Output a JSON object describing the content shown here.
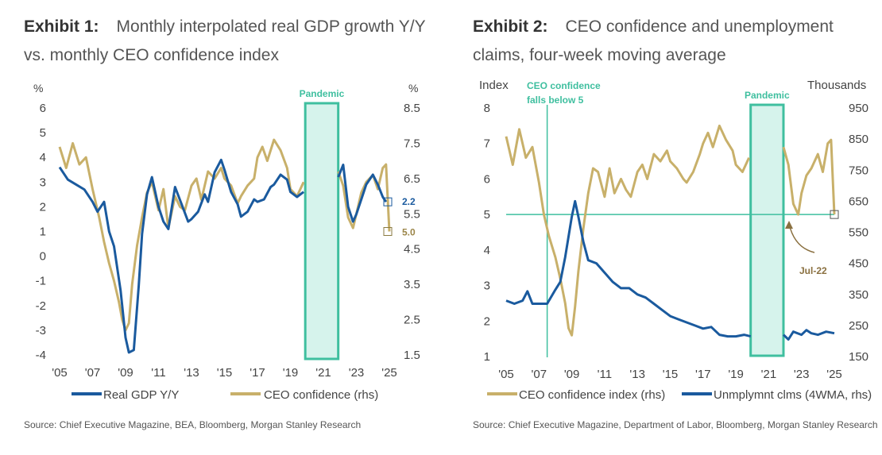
{
  "exhibit1": {
    "label": "Exhibit 1:",
    "title": "Monthly interpolated real GDP growth Y/Y vs. monthly CEO confidence index",
    "source": "Source: Chief Executive Magazine, BEA, Bloomberg, Morgan Stanley Research",
    "pandemic_label": "Pandemic",
    "left_unit": "%",
    "right_unit": "%",
    "left_ticks": [
      "6",
      "5",
      "4",
      "3",
      "2",
      "1",
      "0",
      "-1",
      "-2",
      "-3",
      "-4"
    ],
    "right_ticks": [
      "8.5",
      "7.5",
      "6.5",
      "5.5",
      "4.5",
      "3.5",
      "2.5",
      "1.5"
    ],
    "x_ticks": [
      "'05",
      "'07",
      "'09",
      "'11",
      "'13",
      "'15",
      "'17",
      "'19",
      "'21",
      "'23",
      "'25"
    ],
    "end_label_gdp": "2.2",
    "end_label_ceo": "5.0",
    "legend_gdp": "Real GDP Y/Y",
    "legend_ceo": "CEO confidence (rhs)"
  },
  "exhibit2": {
    "label": "Exhibit 2:",
    "title": "CEO confidence and unemployment claims, four-week moving average",
    "source": "Source: Chief Executive Magazine, Department of Labor, Bloomberg, Morgan Stanley Research",
    "pandemic_label": "Pandemic",
    "left_unit": "Index",
    "right_unit": "Thousands",
    "left_ticks": [
      "8",
      "7",
      "6",
      "5",
      "4",
      "3",
      "2",
      "1"
    ],
    "right_ticks": [
      "950",
      "850",
      "750",
      "650",
      "550",
      "450",
      "350",
      "250",
      "150"
    ],
    "x_ticks": [
      "'05",
      "'07",
      "'09",
      "'11",
      "'13",
      "'15",
      "'17",
      "'19",
      "'21",
      "'23",
      "'25"
    ],
    "annotation_line1": "CEO confidence",
    "annotation_line2": "falls below 5",
    "jul_label": "Jul-22",
    "legend_ceo": "CEO confidence index (rhs)",
    "legend_claims": "Unmplymnt clms (4WMA, rhs)"
  },
  "colors": {
    "blue": "#1a5a9e",
    "gold": "#c8b06a",
    "teal": "#3fbf9f",
    "teal_fill": "#d6f3ec",
    "arrow": "#8a7040"
  },
  "chart_data": [
    {
      "type": "line",
      "title": "Monthly interpolated real GDP growth Y/Y vs. monthly CEO confidence index",
      "ylabel": "%",
      "ylim": [
        -4,
        6
      ],
      "y2label": "%",
      "y2lim": [
        1.5,
        8.5
      ],
      "xlim": [
        2005,
        2025
      ],
      "pandemic": [
        2019.9,
        2021.9
      ],
      "series": [
        {
          "name": "Real GDP Y/Y",
          "axis": "left",
          "x": [
            2005,
            2005.5,
            2006,
            2006.5,
            2007,
            2007.3,
            2007.7,
            2008,
            2008.3,
            2008.7,
            2009,
            2009.2,
            2009.5,
            2009.8,
            2010,
            2010.3,
            2010.6,
            2011,
            2011.3,
            2011.6,
            2012,
            2012.4,
            2012.8,
            2013,
            2013.4,
            2013.8,
            2014,
            2014.4,
            2014.8,
            2015,
            2015.4,
            2015.8,
            2016,
            2016.4,
            2016.8,
            2017,
            2017.4,
            2017.8,
            2018,
            2018.4,
            2018.8,
            2019,
            2019.4,
            2019.8,
            2021.9,
            2022.2,
            2022.5,
            2022.8,
            2023,
            2023.3,
            2023.6,
            2024,
            2024.3,
            2024.6,
            2024.8
          ],
          "values": [
            3.6,
            3.1,
            2.9,
            2.7,
            2.2,
            1.8,
            2.2,
            1.0,
            0.4,
            -1.4,
            -3.3,
            -3.9,
            -3.8,
            -1.2,
            0.9,
            2.5,
            3.2,
            2.0,
            1.4,
            1.1,
            2.8,
            2.1,
            1.4,
            1.5,
            1.8,
            2.5,
            2.2,
            3.4,
            3.9,
            3.5,
            2.6,
            2.1,
            1.6,
            1.8,
            2.3,
            2.2,
            2.3,
            2.8,
            2.9,
            3.3,
            3.1,
            2.6,
            2.4,
            2.6,
            3.2,
            3.7,
            2.0,
            1.4,
            1.7,
            2.3,
            2.9,
            3.3,
            2.9,
            2.4,
            2.2
          ]
        },
        {
          "name": "CEO confidence (rhs)",
          "axis": "right",
          "x": [
            2005,
            2005.4,
            2005.8,
            2006.2,
            2006.6,
            2007,
            2007.4,
            2007.7,
            2008,
            2008.3,
            2008.6,
            2008.8,
            2009,
            2009.2,
            2009.4,
            2009.7,
            2010,
            2010.3,
            2010.6,
            2011,
            2011.3,
            2011.6,
            2012,
            2012.3,
            2012.6,
            2013,
            2013.3,
            2013.6,
            2014,
            2014.4,
            2014.8,
            2015,
            2015.4,
            2015.8,
            2016,
            2016.4,
            2016.8,
            2017,
            2017.3,
            2017.6,
            2018,
            2018.4,
            2018.8,
            2019,
            2019.4,
            2019.8,
            2021.9,
            2022.2,
            2022.5,
            2022.8,
            2023,
            2023.3,
            2023.6,
            2024,
            2024.3,
            2024.6,
            2024.8,
            2025
          ],
          "values": [
            7.4,
            6.8,
            7.5,
            6.9,
            7.1,
            6.2,
            5.4,
            4.7,
            4.1,
            3.6,
            3.0,
            2.5,
            2.2,
            2.4,
            3.5,
            4.6,
            5.4,
            6.1,
            6.4,
            5.6,
            6.2,
            5.1,
            6.0,
            5.7,
            5.6,
            6.3,
            6.5,
            5.9,
            6.7,
            6.5,
            6.8,
            6.5,
            6.3,
            5.8,
            6.0,
            6.3,
            6.5,
            7.1,
            7.4,
            7.0,
            7.6,
            7.3,
            6.8,
            6.2,
            6.0,
            6.4,
            6.7,
            6.3,
            5.4,
            5.1,
            5.5,
            6.1,
            6.4,
            6.6,
            6.2,
            6.8,
            6.9,
            5.0
          ]
        }
      ]
    },
    {
      "type": "line",
      "title": "CEO confidence and unemployment claims, four-week moving average",
      "ylabel": "Index",
      "ylim": [
        1,
        8
      ],
      "y2label": "Thousands",
      "y2lim": [
        150,
        950
      ],
      "xlim": [
        2005,
        2025
      ],
      "pandemic": [
        2019.9,
        2021.9
      ],
      "threshold": 5,
      "vline": 2007.5,
      "series": [
        {
          "name": "CEO confidence index (rhs)",
          "axis": "left",
          "x": [
            2005,
            2005.4,
            2005.8,
            2006.2,
            2006.6,
            2007,
            2007.3,
            2007.6,
            2008,
            2008.3,
            2008.6,
            2008.8,
            2009,
            2009.2,
            2009.4,
            2009.7,
            2010,
            2010.3,
            2010.6,
            2011,
            2011.3,
            2011.6,
            2012,
            2012.3,
            2012.6,
            2013,
            2013.3,
            2013.6,
            2014,
            2014.4,
            2014.8,
            2015,
            2015.4,
            2015.8,
            2016,
            2016.4,
            2016.8,
            2017,
            2017.3,
            2017.6,
            2018,
            2018.4,
            2018.8,
            2019,
            2019.4,
            2019.8,
            2021.9,
            2022.2,
            2022.5,
            2022.8,
            2023,
            2023.3,
            2023.6,
            2024,
            2024.3,
            2024.6,
            2024.8,
            2025
          ],
          "values": [
            7.2,
            6.4,
            7.4,
            6.6,
            6.9,
            5.9,
            5.0,
            4.4,
            3.8,
            3.2,
            2.5,
            1.8,
            1.6,
            2.4,
            3.4,
            4.6,
            5.6,
            6.3,
            6.2,
            5.5,
            6.3,
            5.6,
            6.0,
            5.7,
            5.5,
            6.2,
            6.4,
            6.0,
            6.7,
            6.5,
            6.8,
            6.5,
            6.3,
            6.0,
            5.9,
            6.2,
            6.7,
            7.0,
            7.3,
            6.9,
            7.5,
            7.1,
            6.8,
            6.4,
            6.2,
            6.6,
            6.9,
            6.4,
            5.3,
            5.0,
            5.6,
            6.1,
            6.3,
            6.7,
            6.2,
            7.0,
            7.1,
            5.0
          ]
        },
        {
          "name": "Unmplymnt clms (4WMA, rhs)",
          "axis": "right",
          "x": [
            2005,
            2005.5,
            2006,
            2006.3,
            2006.6,
            2007,
            2007.5,
            2008,
            2008.3,
            2008.6,
            2009,
            2009.2,
            2009.4,
            2009.7,
            2010,
            2010.5,
            2011,
            2011.5,
            2012,
            2012.5,
            2013,
            2013.5,
            2014,
            2014.5,
            2015,
            2015.5,
            2016,
            2016.5,
            2017,
            2017.5,
            2018,
            2018.5,
            2019,
            2019.5,
            2019.9,
            2021.9,
            2022.2,
            2022.5,
            2023,
            2023.3,
            2023.6,
            2024,
            2024.5,
            2025
          ],
          "values": [
            330,
            320,
            330,
            360,
            320,
            320,
            320,
            365,
            390,
            470,
            600,
            650,
            600,
            520,
            460,
            450,
            420,
            390,
            370,
            370,
            350,
            340,
            320,
            300,
            280,
            270,
            260,
            250,
            240,
            245,
            220,
            215,
            215,
            220,
            215,
            220,
            205,
            230,
            220,
            235,
            225,
            220,
            230,
            225
          ]
        }
      ]
    }
  ]
}
